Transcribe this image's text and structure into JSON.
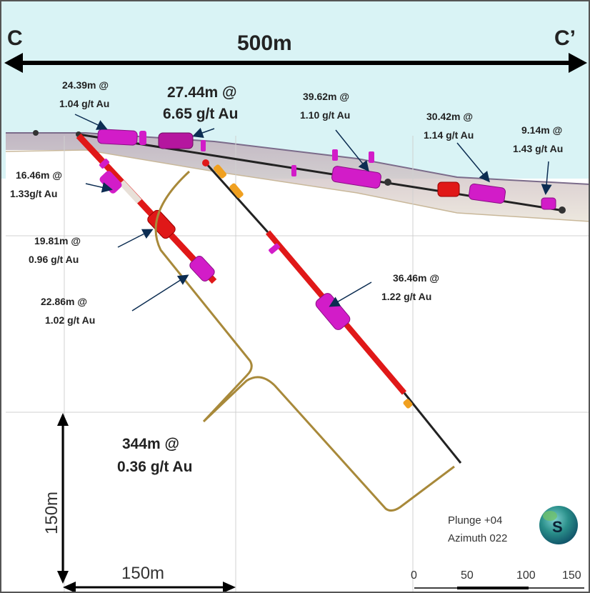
{
  "section": {
    "left_label": "C",
    "right_label": "C’",
    "width_label": "500m"
  },
  "intercepts": [
    {
      "l1": "24.39m @",
      "l2": "1.04 g/t Au"
    },
    {
      "l1": "27.44m @",
      "l2": "6.65 g/t Au"
    },
    {
      "l1": "39.62m @",
      "l2": "1.10 g/t Au"
    },
    {
      "l1": "30.42m @",
      "l2": "1.14 g/t Au"
    },
    {
      "l1": "9.14m @",
      "l2": "1.43 g/t Au"
    },
    {
      "l1": "16.46m @",
      "l2": "1.33g/t Au"
    },
    {
      "l1": "19.81m @",
      "l2": "0.96 g/t Au"
    },
    {
      "l1": "22.86m @",
      "l2": "1.02 g/t Au"
    },
    {
      "l1": "36.46m @",
      "l2": "1.22 g/t Au"
    }
  ],
  "envelope": {
    "l1": "344m @",
    "l2": "0.36 g/t Au"
  },
  "scale": {
    "vertical_label": "150m",
    "horizontal_label": "150m",
    "ticks": [
      "0",
      "50",
      "100",
      "150"
    ]
  },
  "view": {
    "plunge": "Plunge +04",
    "azimuth": "Azimuth 022",
    "compass_letter": "S"
  },
  "colors": {
    "sky": "#d9f3f5",
    "drill_red": "#e01818",
    "magenta": "#d21cc8",
    "orange": "#f0a020",
    "envelope": "#a8893a",
    "arrow": "#0c2d52"
  }
}
